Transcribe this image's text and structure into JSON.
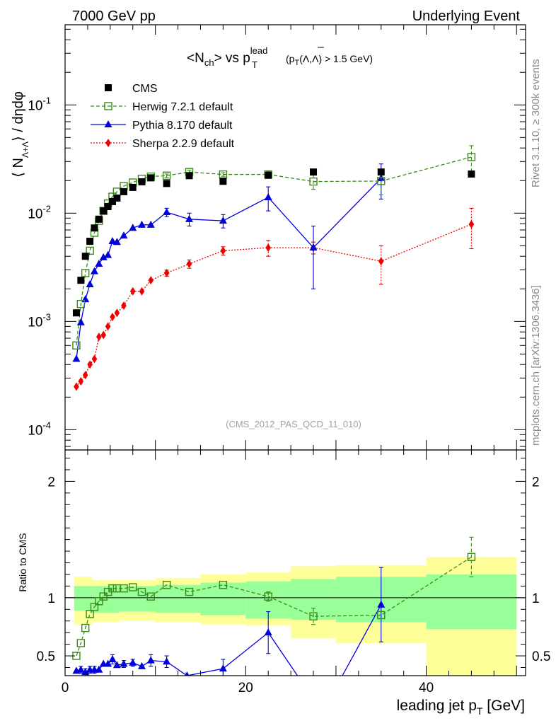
{
  "header": {
    "left": "7000 GeV pp",
    "right": "Underlying Event"
  },
  "side_text": {
    "top": "Rivet 3.1.10, ≥ 300k events",
    "bottom": "mcplots.cern.ch [arXiv:1306.3436]"
  },
  "analysis_id": "(CMS_2012_PAS_QCD_11_010)",
  "colors": {
    "cms": "#000000",
    "herwig": "#3a8a1a",
    "pythia": "#0000dd",
    "sherpa": "#ee0000",
    "band_inner": "#99ff99",
    "band_outer": "#ffff99"
  },
  "chart_data": [
    {
      "type": "scatter",
      "name": "main",
      "title_parts": {
        "pre": "<N",
        "pre_sub": "ch",
        "mid": "> vs p",
        "mid_sup": "lead",
        "mid_sub": "T",
        "cut_p": "(p",
        "cut_p_sub": "T",
        "cut_rest": "(Λ,Λ) > 1.5 GeV)"
      },
      "ylabel_parts": {
        "open": "⟨ N",
        "sub": "Λ+Λ",
        "close": "⟩ / dηdφ"
      },
      "y_scale": "log",
      "ylim": [
        6.5e-05,
        0.55
      ],
      "xlim": [
        0,
        51
      ],
      "ytick_labels": [
        {
          "base": "10",
          "exp": "-4",
          "value": 0.0001
        },
        {
          "base": "10",
          "exp": "-3",
          "value": 0.001
        },
        {
          "base": "10",
          "exp": "-2",
          "value": 0.01
        },
        {
          "base": "10",
          "exp": "-1",
          "value": 0.1
        }
      ],
      "legend": {
        "placement": "top-left",
        "entries": [
          {
            "key": "cms",
            "label": "CMS"
          },
          {
            "key": "herwig",
            "label": "Herwig 7.2.1 default"
          },
          {
            "key": "pythia",
            "label": "Pythia 8.170 default"
          },
          {
            "key": "sherpa",
            "label": "Sherpa 2.2.9 default"
          }
        ]
      },
      "series": [
        {
          "key": "cms",
          "x": [
            1.25,
            1.75,
            2.25,
            2.75,
            3.25,
            3.75,
            4.25,
            4.75,
            5.25,
            5.75,
            6.5,
            7.5,
            8.5,
            9.5,
            11.25,
            13.75,
            17.5,
            22.5,
            27.5,
            35.0,
            45.0
          ],
          "y": [
            0.0012,
            0.0024,
            0.004,
            0.0055,
            0.0073,
            0.0088,
            0.0105,
            0.0115,
            0.0128,
            0.0138,
            0.0158,
            0.0173,
            0.0195,
            0.0212,
            0.0188,
            0.0222,
            0.0197,
            0.0224,
            0.024,
            0.024,
            0.023
          ]
        },
        {
          "key": "herwig",
          "x": [
            1.25,
            1.75,
            2.25,
            2.75,
            3.25,
            3.75,
            4.25,
            4.75,
            5.25,
            5.75,
            6.5,
            7.5,
            8.5,
            9.5,
            11.25,
            13.75,
            17.5,
            22.5,
            27.5,
            35.0,
            45.0
          ],
          "y": [
            0.0006,
            0.00145,
            0.0028,
            0.0045,
            0.0066,
            0.0085,
            0.0105,
            0.0123,
            0.0142,
            0.0158,
            0.0178,
            0.0192,
            0.0208,
            0.0218,
            0.0222,
            0.024,
            0.0228,
            0.0228,
            0.0196,
            0.0198,
            0.033
          ],
          "err": [
            0,
            0,
            0,
            0,
            0,
            0,
            0,
            0,
            0,
            0,
            0,
            0,
            0,
            0,
            0.0008,
            0.001,
            0.0009,
            0.0014,
            0.003,
            0.005,
            0.009
          ]
        },
        {
          "key": "pythia",
          "x": [
            1.25,
            1.75,
            2.25,
            2.75,
            3.25,
            3.75,
            4.25,
            4.75,
            5.25,
            5.75,
            6.5,
            7.5,
            8.5,
            9.5,
            11.25,
            13.75,
            17.5,
            22.5,
            27.5,
            35.0
          ],
          "y": [
            0.00045,
            0.00098,
            0.0016,
            0.0022,
            0.0029,
            0.0034,
            0.0039,
            0.0041,
            0.0055,
            0.0054,
            0.0062,
            0.0073,
            0.0078,
            0.0078,
            0.0102,
            0.0088,
            0.0085,
            0.014,
            0.0048,
            0.021
          ],
          "err": [
            0,
            0,
            0,
            0,
            0,
            0,
            0,
            0,
            0,
            0,
            0,
            0,
            0,
            0,
            0.0009,
            0.0012,
            0.0012,
            0.0035,
            0.0028,
            0.0075
          ]
        },
        {
          "key": "sherpa",
          "x": [
            1.25,
            1.75,
            2.25,
            2.75,
            3.25,
            3.75,
            4.25,
            4.75,
            5.25,
            5.75,
            6.5,
            7.5,
            8.5,
            9.5,
            11.25,
            13.75,
            17.5,
            22.5,
            27.5,
            35.0,
            45.0
          ],
          "y": [
            0.00025,
            0.00028,
            0.00032,
            0.0004,
            0.00045,
            0.00072,
            0.00075,
            0.0009,
            0.0011,
            0.0012,
            0.0014,
            0.0019,
            0.0019,
            0.0024,
            0.0028,
            0.0034,
            0.0045,
            0.0048,
            0.0048,
            0.0036,
            0.0079
          ],
          "err": [
            0,
            0,
            0,
            0,
            0,
            0,
            0,
            0,
            0,
            0,
            0,
            0,
            0,
            0,
            0.00018,
            0.0003,
            0.0004,
            0.0008,
            0.0006,
            0.0014,
            0.0032
          ]
        }
      ]
    },
    {
      "type": "line",
      "name": "ratio",
      "ylabel": "Ratio to CMS",
      "xlabel_parts": {
        "text": "leading jet p",
        "sub": "T",
        "unit": " [GeV]"
      },
      "xlim": [
        0,
        51
      ],
      "ylim": [
        0.33,
        2.27
      ],
      "reference_line": 1.0,
      "xticks": [
        0,
        20,
        40
      ],
      "xtick_labels": [
        "0",
        "20",
        "40"
      ],
      "yticks": [
        0.5,
        1,
        2
      ],
      "ytick_labels": [
        "0.5",
        "1",
        "2"
      ],
      "bands": {
        "edges": [
          1,
          3,
          6,
          10,
          15,
          20,
          25,
          30,
          40,
          50
        ],
        "inner_lo": [
          0.89,
          0.87,
          0.88,
          0.87,
          0.85,
          0.82,
          0.81,
          0.79,
          0.73
        ],
        "inner_hi": [
          1.1,
          1.1,
          1.1,
          1.11,
          1.13,
          1.14,
          1.16,
          1.18,
          1.2
        ],
        "outer_lo": [
          0.77,
          0.79,
          0.8,
          0.79,
          0.77,
          0.76,
          0.65,
          0.61,
          0.33
        ],
        "outer_hi": [
          1.18,
          1.15,
          1.15,
          1.17,
          1.2,
          1.22,
          1.27,
          1.28,
          1.35
        ]
      },
      "series": [
        {
          "key": "herwig",
          "x": [
            1.25,
            1.75,
            2.25,
            2.75,
            3.25,
            3.75,
            4.25,
            4.75,
            5.25,
            5.75,
            6.5,
            7.5,
            8.5,
            9.5,
            11.25,
            13.75,
            17.5,
            22.5,
            27.5,
            35.0,
            45.0
          ],
          "y": [
            0.5,
            0.61,
            0.74,
            0.86,
            0.92,
            0.97,
            1.01,
            1.05,
            1.08,
            1.08,
            1.08,
            1.09,
            1.05,
            1.01,
            1.11,
            1.05,
            1.11,
            1.01,
            0.84,
            0.85,
            1.35
          ],
          "err": [
            0,
            0,
            0,
            0,
            0,
            0,
            0,
            0,
            0,
            0,
            0,
            0,
            0,
            0,
            0,
            0,
            0,
            0.04,
            0.07,
            0,
            0.17
          ]
        },
        {
          "key": "pythia",
          "x": [
            1.25,
            1.75,
            2.25,
            2.75,
            3.25,
            3.75,
            4.25,
            4.75,
            5.25,
            5.75,
            6.5,
            7.5,
            8.5,
            9.5,
            11.25,
            13.5,
            17.5,
            22.5,
            26.0,
            30.5,
            35.0
          ],
          "y": [
            0.37,
            0.38,
            0.36,
            0.38,
            0.38,
            0.38,
            0.43,
            0.43,
            0.47,
            0.42,
            0.43,
            0.44,
            0.41,
            0.46,
            0.45,
            0.33,
            0.39,
            0.7,
            0.3,
            0.3,
            0.94
          ],
          "err": [
            0,
            0.03,
            0.03,
            0.03,
            0.03,
            0,
            0,
            0,
            0.04,
            0,
            0.03,
            0.03,
            0,
            0.05,
            0.05,
            0,
            0.08,
            0.18,
            0,
            0,
            0.32
          ]
        }
      ]
    }
  ]
}
